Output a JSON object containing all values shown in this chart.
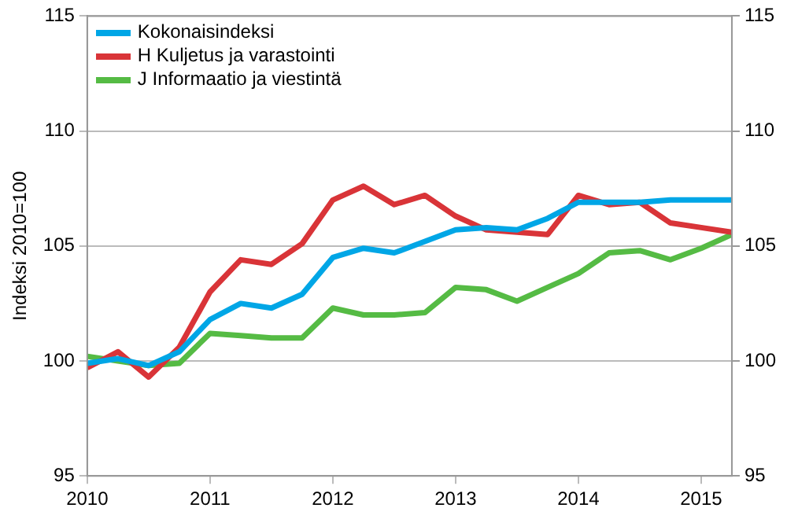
{
  "chart_data": {
    "type": "line",
    "ylabel": "Indeksi 2010=100",
    "x": [
      2010,
      2010.25,
      2010.5,
      2010.75,
      2011,
      2011.25,
      2011.5,
      2011.75,
      2012,
      2012.25,
      2012.5,
      2012.75,
      2013,
      2013.25,
      2013.5,
      2013.75,
      2014,
      2014.25,
      2014.5,
      2014.75,
      2015,
      2015.25
    ],
    "series": [
      {
        "name": "Kokonaisindeksi",
        "color": "#00a6e6",
        "values": [
          99.9,
          100.1,
          99.8,
          100.4,
          101.8,
          102.5,
          102.3,
          102.9,
          104.5,
          104.9,
          104.7,
          105.2,
          105.7,
          105.8,
          105.7,
          106.2,
          106.9,
          106.9,
          106.9,
          107.0,
          107.0,
          107.0
        ]
      },
      {
        "name": "H Kuljetus ja varastointi",
        "color": "#d93438",
        "values": [
          99.7,
          100.4,
          99.3,
          100.6,
          103.0,
          104.4,
          104.2,
          105.1,
          107.0,
          107.6,
          106.8,
          107.2,
          106.3,
          105.7,
          105.6,
          105.5,
          107.2,
          106.8,
          106.9,
          106.0,
          105.8,
          105.6
        ]
      },
      {
        "name": "J Informaatio ja viestintä",
        "color": "#55bb44",
        "values": [
          100.2,
          100.0,
          99.8,
          99.9,
          101.2,
          101.1,
          101.0,
          101.0,
          102.3,
          102.0,
          102.0,
          102.1,
          103.2,
          103.1,
          102.6,
          103.2,
          103.8,
          104.7,
          104.8,
          104.4,
          104.9,
          105.5
        ]
      }
    ],
    "xlim": [
      2010,
      2015.25
    ],
    "xticks": [
      2010,
      2011,
      2012,
      2013,
      2014,
      2015
    ],
    "ylim": [
      95,
      115
    ],
    "yticks": [
      95,
      100,
      105,
      110,
      115
    ],
    "y2lim": [
      95,
      115
    ],
    "y2ticks": [
      95,
      100,
      105,
      110,
      115
    ],
    "grid": "y",
    "legend": "top left",
    "marker": "none",
    "line_style": "solid"
  }
}
